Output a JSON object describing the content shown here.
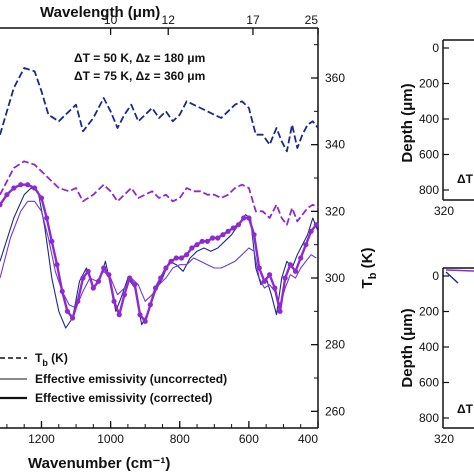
{
  "chart_data": [
    {
      "type": "line",
      "xlabel_bottom": "Wavenumber (cm⁻¹)",
      "xlabel_top": "Wavelength (μm)",
      "ylabel_right_main": "T",
      "ylabel_right_sub": "b",
      "ylabel_right_unit": " (K)",
      "x_reversed": true,
      "xlim": [
        1320,
        400
      ],
      "ylim_right": [
        255,
        375
      ],
      "x_ticks": [
        {
          "v": 1200,
          "label": "1200"
        },
        {
          "v": 1000,
          "label": "1000"
        },
        {
          "v": 800,
          "label": "800"
        },
        {
          "v": 600,
          "label": "600"
        },
        {
          "v": 400,
          "label": "400"
        }
      ],
      "top_ticks": [
        {
          "v": 1000,
          "label": "10"
        },
        {
          "v": 833.3,
          "label": "12"
        },
        {
          "v": 588.2,
          "label": "17"
        },
        {
          "v": 400,
          "label": "25"
        }
      ],
      "y_ticks_right": [
        {
          "v": 260,
          "label": "260"
        },
        {
          "v": 280,
          "label": "280"
        },
        {
          "v": 300,
          "label": "300"
        },
        {
          "v": 320,
          "label": "320"
        },
        {
          "v": 340,
          "label": "340"
        },
        {
          "v": 360,
          "label": "360"
        }
      ],
      "annotations": [
        {
          "text": "ΔT = 50 K, Δz = 180 μm",
          "color": "#1a2a8a"
        },
        {
          "text": "ΔT = 75 K, Δz = 360 μm",
          "color": "#8e2ad0"
        }
      ],
      "legend": [
        {
          "label_main": "T",
          "label_sub": "b",
          "label_rest": " (K)",
          "style": "dashed"
        },
        {
          "label": "Effective emissivity (uncorrected)",
          "style": "thin"
        },
        {
          "label": "Effective emissivity (corrected)",
          "style": "thick"
        }
      ],
      "legend_position": "bottom-left",
      "series": [
        {
          "color": "#1a2a8a",
          "style": "dashed",
          "x": [
            1320,
            1280,
            1250,
            1220,
            1200,
            1180,
            1150,
            1120,
            1100,
            1080,
            1050,
            1020,
            1000,
            980,
            960,
            940,
            920,
            900,
            880,
            860,
            840,
            820,
            800,
            780,
            760,
            740,
            720,
            700,
            680,
            660,
            640,
            620,
            600,
            580,
            560,
            540,
            520,
            505,
            490,
            475,
            460,
            445,
            430,
            415,
            400
          ],
          "y": [
            343,
            357,
            363,
            362,
            356,
            349,
            347,
            350,
            352,
            344,
            348,
            354,
            350,
            345,
            349,
            352,
            347,
            349,
            351,
            348,
            350,
            347,
            349,
            353,
            352,
            351,
            350,
            349,
            348,
            350,
            352,
            353,
            351,
            343,
            343,
            340,
            345,
            341,
            338,
            346,
            339,
            343,
            346,
            347,
            345
          ]
        },
        {
          "color": "#8e2ad0",
          "style": "dashed",
          "x": [
            1320,
            1280,
            1250,
            1220,
            1200,
            1180,
            1150,
            1120,
            1100,
            1080,
            1050,
            1020,
            1000,
            980,
            960,
            940,
            920,
            900,
            880,
            860,
            840,
            820,
            800,
            780,
            760,
            740,
            720,
            700,
            680,
            660,
            640,
            620,
            600,
            580,
            560,
            540,
            520,
            505,
            490,
            475,
            460,
            445,
            430,
            415,
            400
          ],
          "y": [
            325,
            333,
            335,
            334,
            332,
            330,
            327,
            326,
            327,
            323,
            325,
            328,
            326,
            323,
            325,
            327,
            324,
            325,
            326,
            324,
            325,
            323,
            324,
            327,
            326,
            326,
            325,
            325,
            324,
            325,
            327,
            328,
            327,
            320,
            320,
            318,
            322,
            318,
            316,
            321,
            317,
            319,
            321,
            322,
            321
          ]
        },
        {
          "color": "#1a2a8a",
          "style": "thin",
          "x": [
            1320,
            1280,
            1250,
            1230,
            1210,
            1190,
            1170,
            1150,
            1130,
            1110,
            1090,
            1070,
            1050,
            1030,
            1015,
            1000,
            985,
            970,
            950,
            930,
            910,
            890,
            870,
            850,
            830,
            810,
            790,
            770,
            750,
            730,
            710,
            690,
            670,
            650,
            630,
            610,
            595,
            580,
            565,
            550,
            535,
            520,
            505,
            490,
            475,
            460,
            445,
            430,
            415,
            400
          ],
          "y": [
            305,
            318,
            325,
            327,
            326,
            315,
            300,
            290,
            285,
            288,
            299,
            303,
            297,
            300,
            305,
            298,
            290,
            294,
            300,
            297,
            286,
            290,
            296,
            300,
            305,
            304,
            302,
            306,
            308,
            309,
            308,
            309,
            311,
            313,
            316,
            319,
            318,
            303,
            298,
            300,
            295,
            289,
            300,
            305,
            303,
            307,
            310,
            313,
            318,
            314
          ]
        },
        {
          "color": "#6f3ad8",
          "style": "thin",
          "x": [
            1320,
            1290,
            1260,
            1240,
            1220,
            1200,
            1180,
            1160,
            1140,
            1120,
            1100,
            1080,
            1060,
            1040,
            1020,
            1000,
            980,
            960,
            940,
            920,
            900,
            880,
            860,
            840,
            820,
            800,
            780,
            760,
            740,
            720,
            700,
            680,
            660,
            640,
            620,
            600,
            585,
            570,
            555,
            540,
            525,
            510,
            495,
            480,
            465,
            450,
            435,
            420,
            405
          ],
          "y": [
            300,
            312,
            320,
            323,
            323,
            320,
            312,
            302,
            296,
            292,
            291,
            296,
            300,
            299,
            302,
            300,
            295,
            297,
            300,
            298,
            293,
            295,
            298,
            300,
            303,
            304,
            304,
            306,
            305,
            304,
            303,
            303,
            304,
            305,
            307,
            309,
            308,
            300,
            297,
            298,
            296,
            292,
            297,
            301,
            300,
            303,
            305,
            307,
            306
          ]
        },
        {
          "color": "#8e2ad0",
          "style": "thick",
          "x": [
            1320,
            1300,
            1280,
            1260,
            1240,
            1220,
            1200,
            1185,
            1170,
            1155,
            1140,
            1125,
            1110,
            1095,
            1080,
            1065,
            1050,
            1035,
            1020,
            1005,
            990,
            975,
            960,
            945,
            930,
            915,
            900,
            885,
            870,
            855,
            840,
            825,
            810,
            795,
            780,
            765,
            750,
            735,
            720,
            705,
            690,
            675,
            660,
            645,
            630,
            615,
            600,
            585,
            570,
            555,
            540,
            525,
            510,
            495,
            480,
            465,
            450,
            435,
            420,
            405
          ],
          "y": [
            322,
            325,
            327,
            328,
            328,
            327,
            324,
            318,
            311,
            304,
            296,
            290,
            288,
            293,
            300,
            302,
            297,
            299,
            303,
            301,
            293,
            289,
            295,
            300,
            298,
            289,
            287,
            292,
            297,
            300,
            303,
            305,
            306,
            306,
            307,
            309,
            310,
            311,
            311,
            312,
            312,
            313,
            314,
            315,
            316,
            318,
            318,
            313,
            303,
            299,
            301,
            297,
            290,
            300,
            304,
            302,
            306,
            310,
            314,
            316
          ]
        }
      ]
    },
    {
      "type": "line",
      "ylabel": "Depth (μm)",
      "yticks": [
        "0",
        "200",
        "400",
        "600",
        "800"
      ],
      "xtick_label": "320",
      "annotation": "ΔT"
    },
    {
      "type": "line",
      "ylabel": "Depth (μm)",
      "yticks": [
        "0",
        "200",
        "400",
        "600",
        "800"
      ],
      "xtick_label": "320",
      "annotation": "ΔT"
    }
  ]
}
